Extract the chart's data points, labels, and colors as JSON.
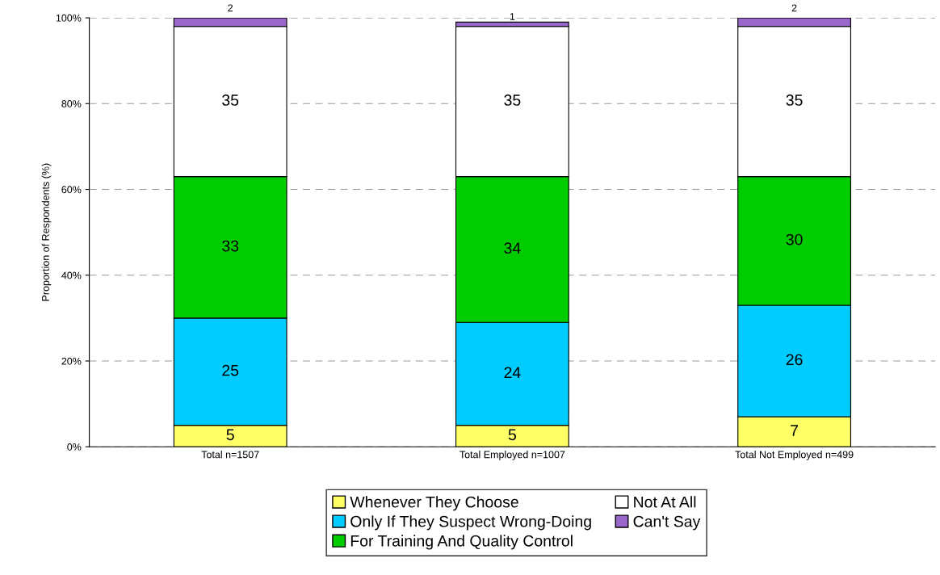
{
  "chart_data": {
    "type": "bar",
    "stacked": true,
    "ylabel": "Proportion of Respondents (%)",
    "categories": [
      "Total n=1507",
      "Total Employed n=1007",
      "Total Not Employed n=499"
    ],
    "series": [
      {
        "name": "Whenever They Choose",
        "color": "#ffff66",
        "values": [
          5,
          5,
          7
        ]
      },
      {
        "name": "Only If They Suspect Wrong-Doing",
        "color": "#00ccff",
        "values": [
          25,
          24,
          26
        ]
      },
      {
        "name": "For Training And Quality Control",
        "color": "#00cc00",
        "values": [
          33,
          34,
          30
        ]
      },
      {
        "name": "Not At All",
        "color": "#ffffff",
        "values": [
          35,
          35,
          35
        ]
      },
      {
        "name": "Can't Say",
        "color": "#9966cc",
        "values": [
          2,
          1,
          2
        ]
      }
    ],
    "ylim": [
      0,
      100
    ],
    "yticks": [
      {
        "value": 0,
        "label": "0%"
      },
      {
        "value": 20,
        "label": "20%"
      },
      {
        "value": 40,
        "label": "40%"
      },
      {
        "value": 60,
        "label": "60%"
      },
      {
        "value": 80,
        "label": "80%"
      },
      {
        "value": 100,
        "label": "100%"
      }
    ],
    "grid": "y",
    "legend": "bottom",
    "data_labels": true
  }
}
